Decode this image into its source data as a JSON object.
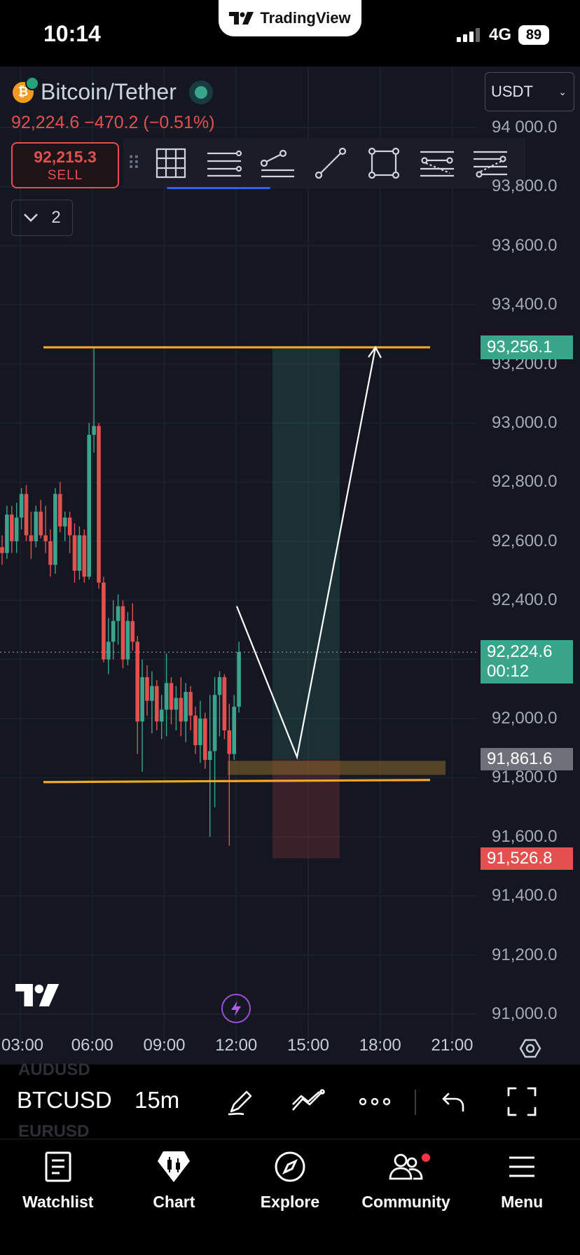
{
  "status_bar": {
    "time": "10:14",
    "network": "4G",
    "battery": "89",
    "app_banner": "TradingView"
  },
  "header": {
    "symbol_name": "Bitcoin/Tether",
    "coin_icon": "bitcoin-tether-icon",
    "last_price": "92,224.6",
    "change": "−470.2",
    "change_pct": "(−0.51%)",
    "sell_price": "92,215.3",
    "sell_label": "SELL",
    "currency": "USDT",
    "indicator_count": "2"
  },
  "drawing_toolbar": {
    "tools": [
      "grid-icon",
      "horizontal-lines-icon",
      "trend-ray-icon",
      "trendline-icon",
      "rectangle-icon",
      "fib-channel-icon",
      "pitchfork-icon"
    ]
  },
  "colors": {
    "bg": "#141722",
    "up": "#3aa58a",
    "down": "#e2504f",
    "level_line": "#f5a623",
    "target_zone": "#3aa58a",
    "stop_zone": "#e2504f",
    "entry_band": "#8a6a2a"
  },
  "chart_data": {
    "type": "candlestick",
    "symbol": "BTCUSD",
    "timeframe": "15m",
    "y_ticks": [
      94000,
      93800,
      93600,
      93400,
      93200,
      93000,
      92800,
      92600,
      92400,
      92200,
      92000,
      91800,
      91600,
      91400,
      91200,
      91000
    ],
    "y_tick_labels": [
      "94 000.0",
      "93,800.0",
      "93,600.0",
      "93,400.0",
      "93,200.0",
      "93,000.0",
      "92,800.0",
      "92,600.0",
      "92,400.0",
      "92,000.0",
      "91,800.0",
      "91,600.0",
      "91,400.0",
      "91,200.0",
      "91,000.0"
    ],
    "x_ticks": [
      "03:00",
      "06:00",
      "09:00",
      "12:00",
      "15:00",
      "18:00",
      "21:00"
    ],
    "ylim": [
      90980,
      94060
    ],
    "price_tags": {
      "resistance": "93,256.1",
      "current": "92,224.6",
      "countdown": "00:12",
      "entry": "91,861.6",
      "stop": "91,526.8"
    },
    "levels": {
      "resistance": 93256.1,
      "support": 91785,
      "entry": 91861.6,
      "stop": 91526.8,
      "current": 92224.6
    },
    "candles": [
      [
        92580,
        92620,
        92520,
        92560
      ],
      [
        92560,
        92720,
        92540,
        92690
      ],
      [
        92690,
        92720,
        92560,
        92600
      ],
      [
        92600,
        92730,
        92560,
        92680
      ],
      [
        92680,
        92780,
        92640,
        92760
      ],
      [
        92760,
        92790,
        92600,
        92620
      ],
      [
        92620,
        92700,
        92540,
        92600
      ],
      [
        92600,
        92720,
        92580,
        92700
      ],
      [
        92700,
        92740,
        92610,
        92620
      ],
      [
        92620,
        92720,
        92560,
        92600
      ],
      [
        92600,
        92640,
        92480,
        92520
      ],
      [
        92520,
        92780,
        92490,
        92760
      ],
      [
        92760,
        92800,
        92630,
        92650
      ],
      [
        92650,
        92700,
        92600,
        92680
      ],
      [
        92680,
        92700,
        92560,
        92620
      ],
      [
        92620,
        92660,
        92460,
        92500
      ],
      [
        92500,
        92650,
        92470,
        92620
      ],
      [
        92620,
        92640,
        92460,
        92480
      ],
      [
        92480,
        93000,
        92470,
        92960
      ],
      [
        92960,
        93256,
        92900,
        92990
      ],
      [
        92990,
        93000,
        92440,
        92460
      ],
      [
        92460,
        92480,
        92190,
        92200
      ],
      [
        92200,
        92340,
        92150,
        92260
      ],
      [
        92260,
        92400,
        92200,
        92330
      ],
      [
        92330,
        92420,
        92250,
        92380
      ],
      [
        92380,
        92400,
        92170,
        92200
      ],
      [
        92200,
        92360,
        92180,
        92330
      ],
      [
        92330,
        92390,
        92230,
        92260
      ],
      [
        92260,
        92280,
        91880,
        91990
      ],
      [
        91990,
        92200,
        91820,
        92140
      ],
      [
        92140,
        92180,
        92010,
        92060
      ],
      [
        92060,
        92160,
        91950,
        92110
      ],
      [
        92110,
        92130,
        91960,
        91990
      ],
      [
        91990,
        92080,
        91930,
        92030
      ],
      [
        92030,
        92220,
        91940,
        92120
      ],
      [
        92120,
        92140,
        91980,
        92030
      ],
      [
        92030,
        92110,
        91960,
        92070
      ],
      [
        92070,
        92140,
        91940,
        91990
      ],
      [
        91990,
        92120,
        91920,
        92090
      ],
      [
        92090,
        92110,
        91960,
        92010
      ],
      [
        92010,
        92040,
        91880,
        91910
      ],
      [
        91910,
        92060,
        91850,
        92000
      ],
      [
        92000,
        92020,
        91830,
        91860
      ],
      [
        91860,
        92080,
        91600,
        91890
      ],
      [
        91890,
        92140,
        91700,
        92080
      ],
      [
        92080,
        92160,
        91940,
        92140
      ],
      [
        92140,
        92150,
        91930,
        91960
      ],
      [
        91960,
        92050,
        91570,
        91880
      ],
      [
        91880,
        92080,
        91860,
        92040
      ],
      [
        92040,
        92260,
        92020,
        92225
      ]
    ],
    "arrow_path": [
      [
        92380,
        "12:00"
      ],
      [
        91870,
        "14:30"
      ],
      [
        93256,
        "17:50"
      ]
    ],
    "position": {
      "entry": 91861.6,
      "target": 93256.1,
      "stop": 91526.8
    }
  },
  "chart_toolbar": {
    "symbol": "BTCUSD",
    "timeframe": "15m",
    "ghost_above": "AUDUSD",
    "ghost_below": "EURUSD",
    "icons": [
      "pencil-icon",
      "trend-tools-icon",
      "more-icon",
      "undo-icon",
      "fullscreen-icon"
    ]
  },
  "bottom_nav": [
    {
      "label": "Watchlist",
      "icon": "watchlist-icon"
    },
    {
      "label": "Chart",
      "icon": "chart-icon"
    },
    {
      "label": "Explore",
      "icon": "compass-icon"
    },
    {
      "label": "Community",
      "icon": "community-icon"
    },
    {
      "label": "Menu",
      "icon": "menu-icon"
    }
  ]
}
